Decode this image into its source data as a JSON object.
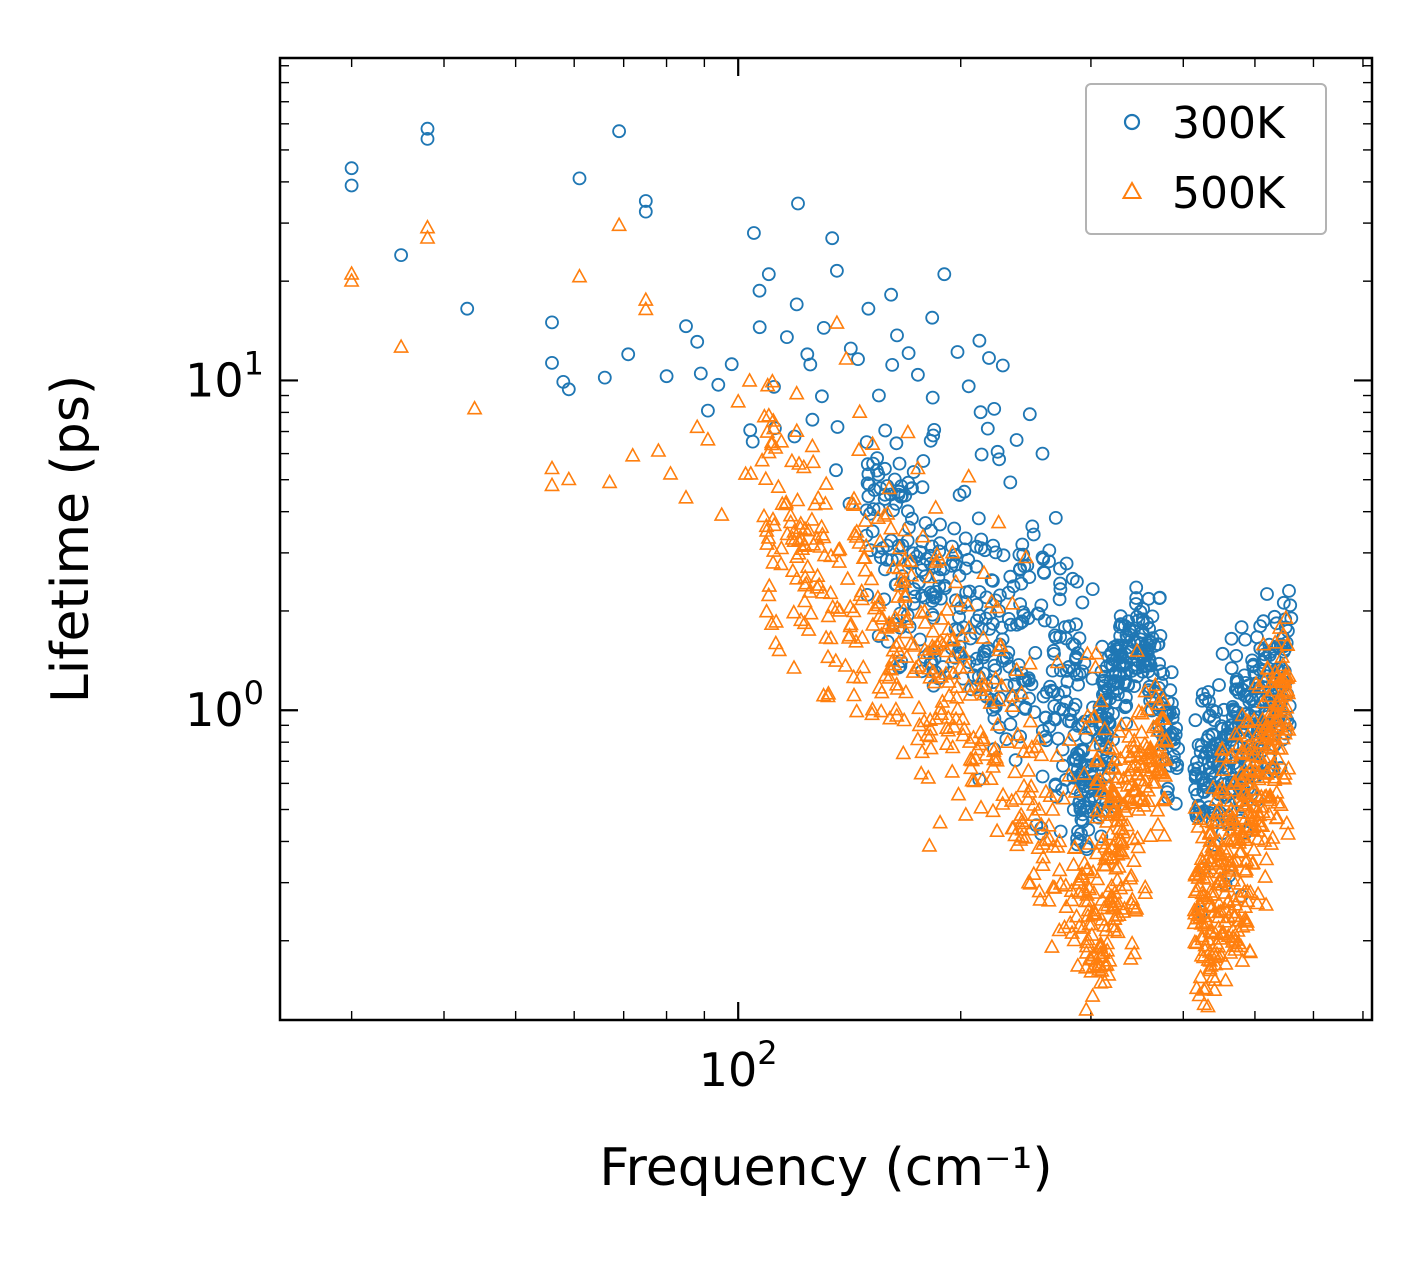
{
  "chart_data": {
    "type": "scatter",
    "title": "",
    "xlabel": "Frequency (cm⁻¹)",
    "ylabel": "Lifetime (ps)",
    "x_scale": "log",
    "y_scale": "log",
    "x_range": [
      24,
      720
    ],
    "y_range": [
      0.115,
      95
    ],
    "grid": false,
    "x_ticks": [
      {
        "value": 100,
        "base": "10",
        "exp": "2"
      }
    ],
    "y_ticks": [
      {
        "value": 10,
        "base": "10",
        "exp": "1"
      },
      {
        "value": 1,
        "base": "10",
        "exp": "0"
      }
    ],
    "legend": {
      "position": "upper right",
      "entries": [
        {
          "label": "300K",
          "marker": "circle",
          "color": "#1f77b4"
        },
        {
          "label": "500K",
          "marker": "triangle",
          "color": "#ff7f0e"
        }
      ]
    },
    "series": [
      {
        "name": "300K",
        "marker": "circle",
        "color": "#1f77b4",
        "points": [
          [
            30,
            44
          ],
          [
            30,
            39
          ],
          [
            35,
            24
          ],
          [
            38,
            58
          ],
          [
            38,
            54
          ],
          [
            43,
            16.5
          ],
          [
            56,
            15
          ],
          [
            56,
            11.3
          ],
          [
            58,
            9.9
          ],
          [
            59,
            9.4
          ],
          [
            61,
            41
          ],
          [
            66,
            10.2
          ],
          [
            69,
            57
          ],
          [
            71,
            12
          ],
          [
            75,
            35
          ],
          [
            75,
            32.5
          ],
          [
            80,
            10.3
          ],
          [
            85,
            14.6
          ],
          [
            88,
            13.1
          ],
          [
            89,
            10.5
          ],
          [
            91,
            8.1
          ],
          [
            94,
            9.7
          ],
          [
            98,
            11.2
          ],
          [
            105,
            28
          ],
          [
            110,
            21
          ],
          [
            120,
            17
          ],
          [
            124,
            12
          ],
          [
            126,
            7.6
          ],
          [
            134,
            27
          ],
          [
            136,
            21.5
          ],
          [
            142,
            12.5
          ],
          [
            150,
            16.5
          ],
          [
            155,
            9.0
          ],
          [
            161,
            18.2
          ],
          [
            164,
            13.7
          ],
          [
            170,
            12.1
          ],
          [
            175,
            10.4
          ],
          [
            183,
            15.5
          ],
          [
            190,
            21
          ],
          [
            198,
            12.2
          ],
          [
            205,
            9.6
          ],
          [
            212,
            13.2
          ],
          [
            222,
            8.2
          ],
          [
            228,
            11.1
          ],
          [
            238,
            6.6
          ],
          [
            248,
            7.9
          ],
          [
            258,
            6.0
          ],
          [
            150,
            5.2
          ],
          [
            165,
            4.6
          ],
          [
            178,
            5.7
          ],
          [
            556,
            2.3
          ],
          [
            558,
            2.08
          ],
          [
            560,
            1.9
          ],
          [
            554,
            1.74
          ],
          [
            552,
            1.6
          ]
        ],
        "bands": [
          {
            "name": "upper-scatter",
            "n": 38,
            "spread": 0.22,
            "centers": [
              [
                100,
                11
              ],
              [
                130,
                8.5
              ],
              [
                165,
                6.5
              ],
              [
                200,
                5.0
              ],
              [
                238,
                4.2
              ]
            ]
          },
          {
            "name": "main-band",
            "n": 300,
            "spread": 0.16,
            "centers": [
              [
                148,
                3.6
              ],
              [
                175,
                2.7
              ],
              [
                205,
                1.95
              ],
              [
                235,
                1.4
              ],
              [
                262,
                1.02
              ],
              [
                285,
                0.8
              ],
              [
                296,
                0.7
              ]
            ]
          },
          {
            "name": "mid-upper",
            "n": 60,
            "spread": 0.18,
            "centers": [
              [
                240,
                2.6
              ],
              [
                272,
                1.9
              ],
              [
                302,
                1.5
              ]
            ]
          },
          {
            "name": "dip",
            "n": 70,
            "spread": 0.1,
            "centers": [
              [
                286,
                0.62
              ],
              [
                298,
                0.52
              ],
              [
                312,
                0.6
              ],
              [
                325,
                0.85
              ]
            ]
          },
          {
            "name": "hump",
            "n": 160,
            "spread": 0.075,
            "centers": [
              [
                308,
                1.05
              ],
              [
                325,
                1.35
              ],
              [
                345,
                1.5
              ],
              [
                365,
                1.42
              ],
              [
                374,
                1.32
              ]
            ]
          },
          {
            "name": "pre-gap-tail",
            "n": 45,
            "spread": 0.1,
            "centers": [
              [
                370,
                1.1
              ],
              [
                382,
                0.85
              ],
              [
                394,
                0.68
              ]
            ]
          },
          {
            "name": "right-cluster",
            "n": 300,
            "spread": 0.13,
            "centers": [
              [
                414,
                0.6
              ],
              [
                440,
                0.68
              ],
              [
                470,
                0.8
              ],
              [
                500,
                0.95
              ],
              [
                530,
                1.12
              ],
              [
                558,
                1.42
              ]
            ]
          }
        ]
      },
      {
        "name": "500K",
        "marker": "triangle",
        "color": "#ff7f0e",
        "points": [
          [
            30,
            21
          ],
          [
            30,
            20
          ],
          [
            35,
            12.6
          ],
          [
            38,
            29
          ],
          [
            38,
            27
          ],
          [
            44,
            8.2
          ],
          [
            56,
            5.4
          ],
          [
            56,
            4.8
          ],
          [
            59,
            5.0
          ],
          [
            61,
            20.6
          ],
          [
            67,
            4.9
          ],
          [
            69,
            29.5
          ],
          [
            72,
            5.9
          ],
          [
            75,
            17.5
          ],
          [
            75,
            16.4
          ],
          [
            78,
            6.1
          ],
          [
            81,
            5.2
          ],
          [
            85,
            4.4
          ],
          [
            88,
            7.2
          ],
          [
            91,
            6.6
          ],
          [
            95,
            3.9
          ],
          [
            100,
            8.6
          ],
          [
            104,
            5.2
          ],
          [
            110,
            7.8
          ],
          [
            116,
            4.2
          ],
          [
            120,
            9.1
          ],
          [
            126,
            6.3
          ],
          [
            130,
            3.4
          ],
          [
            136,
            14.9
          ],
          [
            140,
            11.6
          ],
          [
            146,
            8.0
          ],
          [
            152,
            6.4
          ],
          [
            160,
            4.7
          ],
          [
            168,
            3.5
          ],
          [
            175,
            5.4
          ],
          [
            185,
            4.1
          ],
          [
            195,
            3.0
          ],
          [
            205,
            5.1
          ],
          [
            215,
            2.6
          ],
          [
            225,
            3.7
          ],
          [
            235,
            2.1
          ],
          [
            245,
            2.9
          ]
        ],
        "bands": [
          {
            "name": "upper-scatter",
            "n": 30,
            "spread": 0.2,
            "centers": [
              [
                100,
                6.0
              ],
              [
                130,
                4.4
              ],
              [
                160,
                3.3
              ],
              [
                192,
                2.6
              ]
            ]
          },
          {
            "name": "main-band",
            "n": 380,
            "spread": 0.18,
            "centers": [
              [
                108,
                3.6
              ],
              [
                135,
                2.4
              ],
              [
                165,
                1.55
              ],
              [
                195,
                1.05
              ],
              [
                225,
                0.7
              ],
              [
                252,
                0.48
              ],
              [
                275,
                0.35
              ],
              [
                290,
                0.28
              ]
            ]
          },
          {
            "name": "second-band",
            "n": 70,
            "spread": 0.15,
            "centers": [
              [
                292,
                0.75
              ],
              [
                312,
                0.52
              ],
              [
                332,
                0.36
              ],
              [
                348,
                0.3
              ]
            ]
          },
          {
            "name": "deep-dip",
            "n": 90,
            "spread": 0.1,
            "centers": [
              [
                288,
                0.3
              ],
              [
                298,
                0.22
              ],
              [
                308,
                0.185
              ],
              [
                318,
                0.24
              ],
              [
                328,
                0.32
              ]
            ]
          },
          {
            "name": "hump",
            "n": 130,
            "spread": 0.12,
            "centers": [
              [
                318,
                0.45
              ],
              [
                338,
                0.6
              ],
              [
                355,
                0.73
              ],
              [
                368,
                0.66
              ],
              [
                380,
                0.56
              ]
            ]
          },
          {
            "name": "right-cluster",
            "n": 340,
            "spread": 0.15,
            "centers": [
              [
                414,
                0.27
              ],
              [
                440,
                0.32
              ],
              [
                468,
                0.41
              ],
              [
                498,
                0.54
              ],
              [
                528,
                0.74
              ],
              [
                556,
                1.02
              ]
            ]
          },
          {
            "name": "right-low-edge",
            "n": 55,
            "spread": 0.06,
            "centers": [
              [
                420,
                0.165
              ],
              [
                455,
                0.19
              ],
              [
                490,
                0.24
              ],
              [
                520,
                0.3
              ]
            ]
          }
        ]
      }
    ]
  }
}
